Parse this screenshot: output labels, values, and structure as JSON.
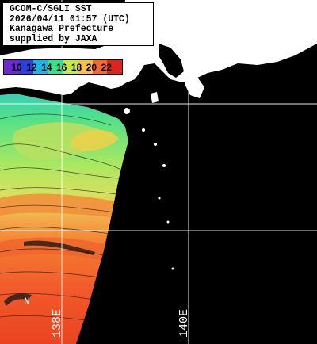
{
  "header": {
    "line1": "GCOM-C/SGLI SST",
    "line2": "2026/04/11 01:57 (UTC)",
    "line3": "Kanagawa Prefecture",
    "line4": "supplied by JAXA"
  },
  "legend": {
    "ticks": [
      "10",
      "12",
      "14",
      "16",
      "18",
      "20",
      "22"
    ],
    "colors": [
      "#6a2ad0",
      "#2d3de0",
      "#19b6e6",
      "#37e08c",
      "#c4e84a",
      "#f6c04a",
      "#f46a2a",
      "#e1231e"
    ]
  },
  "grid_labels": {
    "lon_138": "138E",
    "lon_140": "140E",
    "lat_label": "N"
  },
  "colors": {
    "background": "#000000",
    "land": "#ffffff",
    "grid": "#ffffff"
  }
}
